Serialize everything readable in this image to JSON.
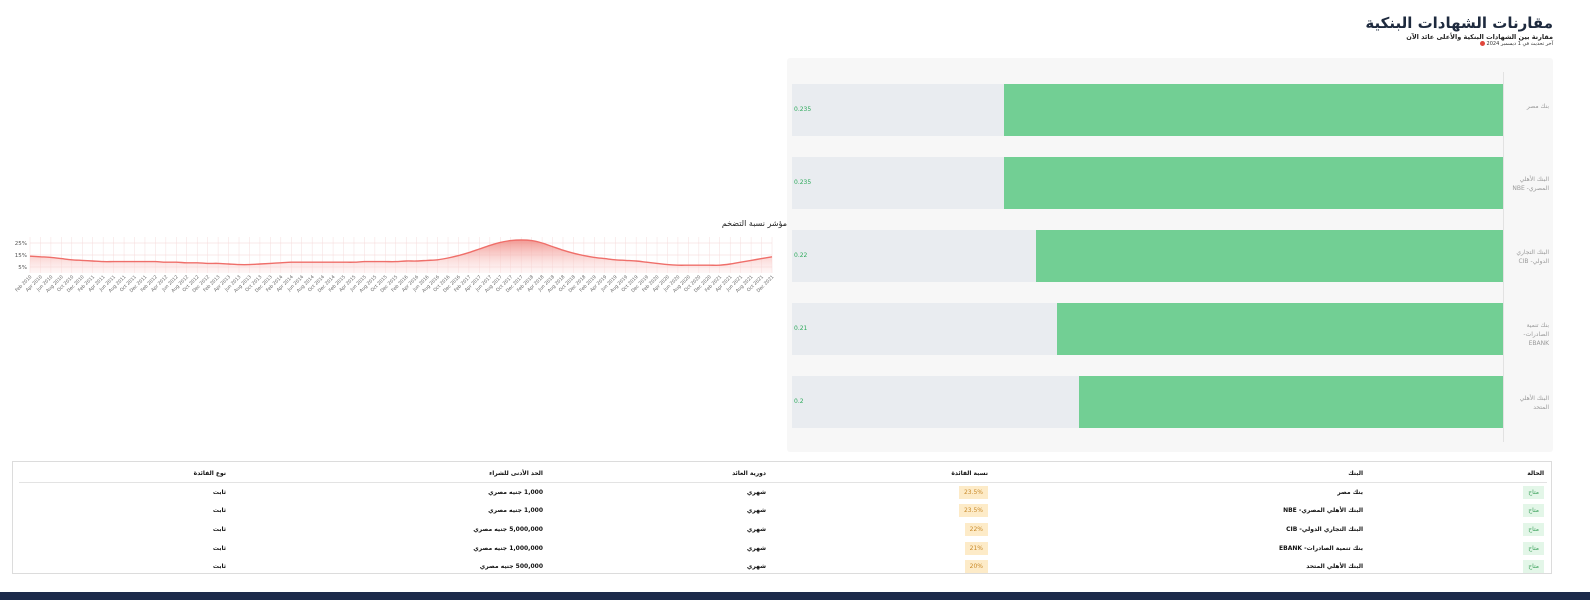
{
  "header": {
    "title": "مقارنات الشهادات البنكية",
    "subtitle": "مقارنة بين الشهادات البنكية والأعلى عائد الآن",
    "update_note": "آخر تحديث في 1 ديسمبر 2024"
  },
  "chart_data": [
    {
      "type": "bar",
      "orientation": "horizontal",
      "categories": [
        "بنك مصر",
        "البنك الأهلي المصري- NBE",
        "البنك التجاري الدولي- CIB",
        "بنك تنمية الصادرات- EBANK",
        "البنك الأهلي المتحد"
      ],
      "values": [
        0.235,
        0.235,
        0.22,
        0.21,
        0.2
      ],
      "color": "#72cf94",
      "track_color": "#e9ecf0",
      "xlim": [
        0,
        0.335
      ]
    },
    {
      "type": "line",
      "title": "مؤشر نسبة التضخم",
      "color": "#ef6f6a",
      "grid": true,
      "ylim": [
        0,
        30
      ],
      "yticks": [
        {
          "value": 5,
          "label": "5%"
        },
        {
          "value": 15,
          "label": "15%"
        },
        {
          "value": 25,
          "label": "25%"
        }
      ],
      "categories": [
        "Feb 2010",
        "Apr 2010",
        "Jun 2010",
        "Aug 2010",
        "Oct 2010",
        "Dec 2010",
        "Feb 2011",
        "Apr 2011",
        "Jun 2011",
        "Aug 2011",
        "Oct 2011",
        "Dec 2011",
        "Feb 2012",
        "Apr 2012",
        "Jun 2012",
        "Aug 2012",
        "Oct 2012",
        "Dec 2012",
        "Feb 2013",
        "Apr 2013",
        "Jun 2013",
        "Aug 2013",
        "Oct 2013",
        "Dec 2013",
        "Feb 2014",
        "Apr 2014",
        "Jun 2014",
        "Aug 2014",
        "Oct 2014",
        "Dec 2014",
        "Feb 2015",
        "Apr 2015",
        "Jun 2015",
        "Aug 2015",
        "Oct 2015",
        "Dec 2015",
        "Feb 2016",
        "Apr 2016",
        "Jun 2016",
        "Aug 2016",
        "Oct 2016",
        "Dec 2016",
        "Feb 2017",
        "Apr 2017",
        "Jun 2017",
        "Aug 2017",
        "Oct 2017",
        "Dec 2017",
        "Feb 2018",
        "Apr 2018",
        "Jun 2018",
        "Aug 2018",
        "Oct 2018",
        "Dec 2018",
        "Feb 2019",
        "Apr 2019",
        "Jun 2019",
        "Aug 2019",
        "Oct 2019",
        "Dec 2019",
        "Feb 2020",
        "Apr 2020",
        "Jun 2020",
        "Aug 2020",
        "Oct 2020",
        "Dec 2020",
        "Feb 2021",
        "Apr 2021",
        "Jun 2021",
        "Aug 2021",
        "Oct 2021",
        "Dec 2021"
      ],
      "values": [
        14,
        13.5,
        13,
        12,
        11,
        10.5,
        10,
        9.5,
        9.5,
        9.5,
        9.5,
        9.5,
        9.5,
        9,
        9,
        8.5,
        8.5,
        8,
        8,
        7.5,
        7,
        7,
        7.5,
        8,
        8.5,
        9,
        9,
        9,
        9,
        9,
        9,
        9,
        9.5,
        9.5,
        9.5,
        9.5,
        10,
        10,
        10.5,
        11,
        12.5,
        14.5,
        17,
        20,
        23,
        25.5,
        27,
        27.5,
        27,
        25,
        22,
        19,
        16.5,
        14.5,
        13,
        12,
        11,
        10.5,
        10,
        9,
        8,
        7,
        6.5,
        6.5,
        6.5,
        6.5,
        6.5,
        7.5,
        9,
        10.5,
        12,
        13.5
      ]
    }
  ],
  "table": {
    "headers": [
      "الحالة",
      "البنك",
      "نسبة الفائدة",
      "دورية العائد",
      "الحد الأدنى للشراء",
      "نوع الفائدة"
    ],
    "rows": [
      [
        "متاح",
        "بنك مصر",
        "23.5%",
        "شهري",
        "1,000 جنيه مصري",
        "ثابت"
      ],
      [
        "متاح",
        "البنك الأهلي المصري- NBE",
        "23.5%",
        "شهري",
        "1,000 جنيه مصري",
        "ثابت"
      ],
      [
        "متاح",
        "البنك التجاري الدولي- CIB",
        "22%",
        "شهري",
        "5,000,000 جنيه مصري",
        "ثابت"
      ],
      [
        "متاح",
        "بنك تنمية الصادرات- EBANK",
        "21%",
        "شهري",
        "1,000,000 جنيه مصري",
        "ثابت"
      ],
      [
        "متاح",
        "البنك الأهلي المتحد",
        "20%",
        "شهري",
        "500,000 جنيه مصري",
        "ثابت"
      ]
    ]
  }
}
